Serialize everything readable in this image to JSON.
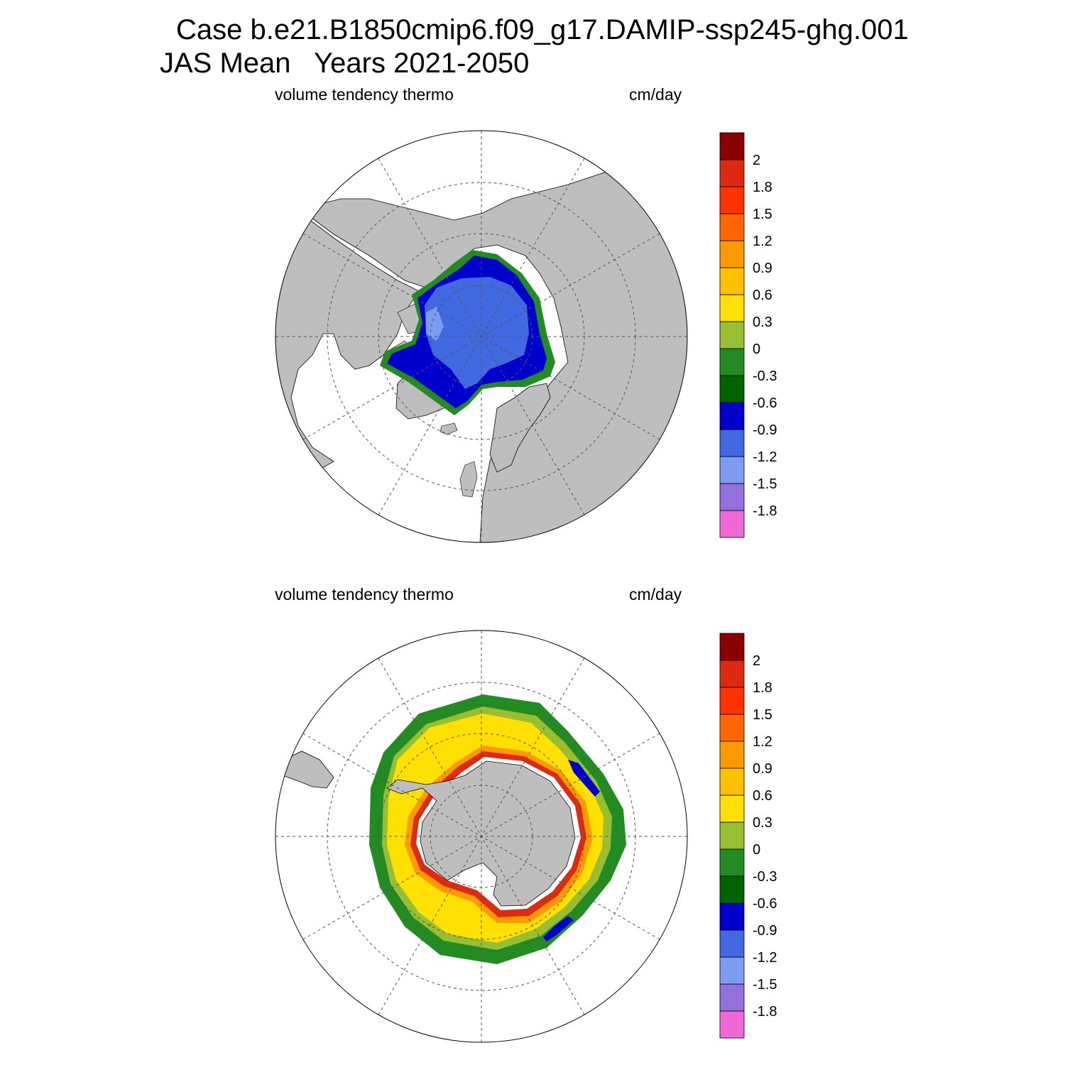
{
  "title": {
    "line1": "Case b.e21.B1850cmip6.f09_g17.DAMIP-ssp245-ghg.001",
    "line2": "JAS Mean   Years 2021-2050"
  },
  "panels": [
    {
      "hemisphere": "north",
      "left_label": "volume tendency thermo",
      "right_label": "cm/day"
    },
    {
      "hemisphere": "south",
      "left_label": "volume tendency thermo",
      "right_label": "cm/day"
    }
  ],
  "colorbar": {
    "colors": [
      "#f068d8",
      "#9370db",
      "#7b9cf0",
      "#4169e1",
      "#0000cd",
      "#006400",
      "#228b22",
      "#98bf32",
      "#ffe000",
      "#ffc000",
      "#ff9900",
      "#ff6600",
      "#ff3300",
      "#dd2a10",
      "#8b0000"
    ],
    "labels": [
      "-1.8",
      "-1.5",
      "-1.2",
      "-0.9",
      "-0.6",
      "-0.3",
      "0",
      "0.3",
      "0.6",
      "0.9",
      "1.2",
      "1.5",
      "1.8",
      "2"
    ]
  },
  "colors": {
    "land": "#bebebe",
    "ocean": "#ffffff",
    "grid": "#555555"
  }
}
